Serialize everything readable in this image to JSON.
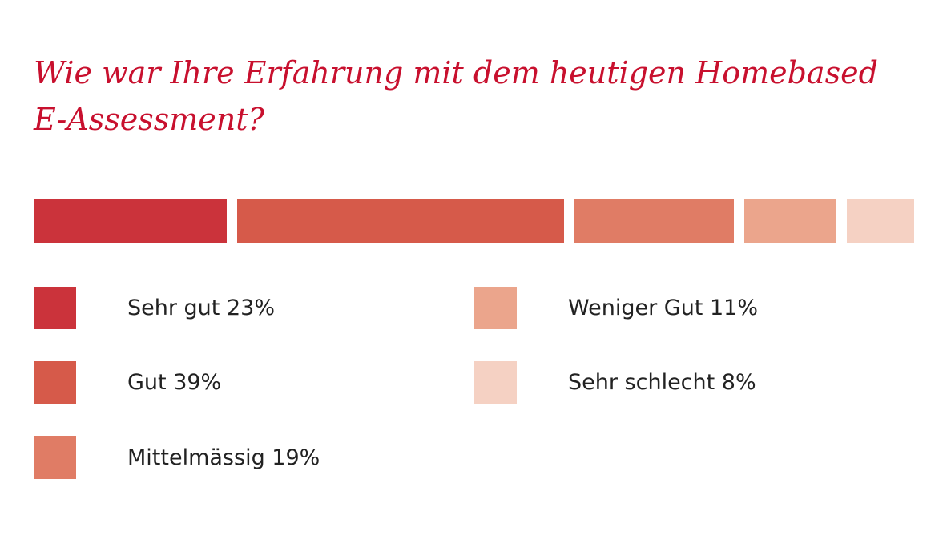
{
  "chart_data": {
    "type": "bar",
    "stacked": true,
    "orientation": "horizontal",
    "title": "Wie war Ihre Erfahrung mit dem heutigen Homebased E-Assessment?",
    "categories": [
      "Sehr gut",
      "Gut",
      "Mittelmässig",
      "Weniger Gut",
      "Sehr schlecht"
    ],
    "values": [
      23,
      39,
      19,
      11,
      8
    ],
    "unit": "%",
    "colors": [
      "#cb333b",
      "#d65a4a",
      "#e07c65",
      "#eba58c",
      "#f5d1c3"
    ],
    "legend_labels": [
      "Sehr gut 23%",
      "Gut 39%",
      "Mittelmässig 19%",
      "Weniger Gut 11%",
      "Sehr schlecht 8%"
    ],
    "legend_position": "bottom"
  }
}
